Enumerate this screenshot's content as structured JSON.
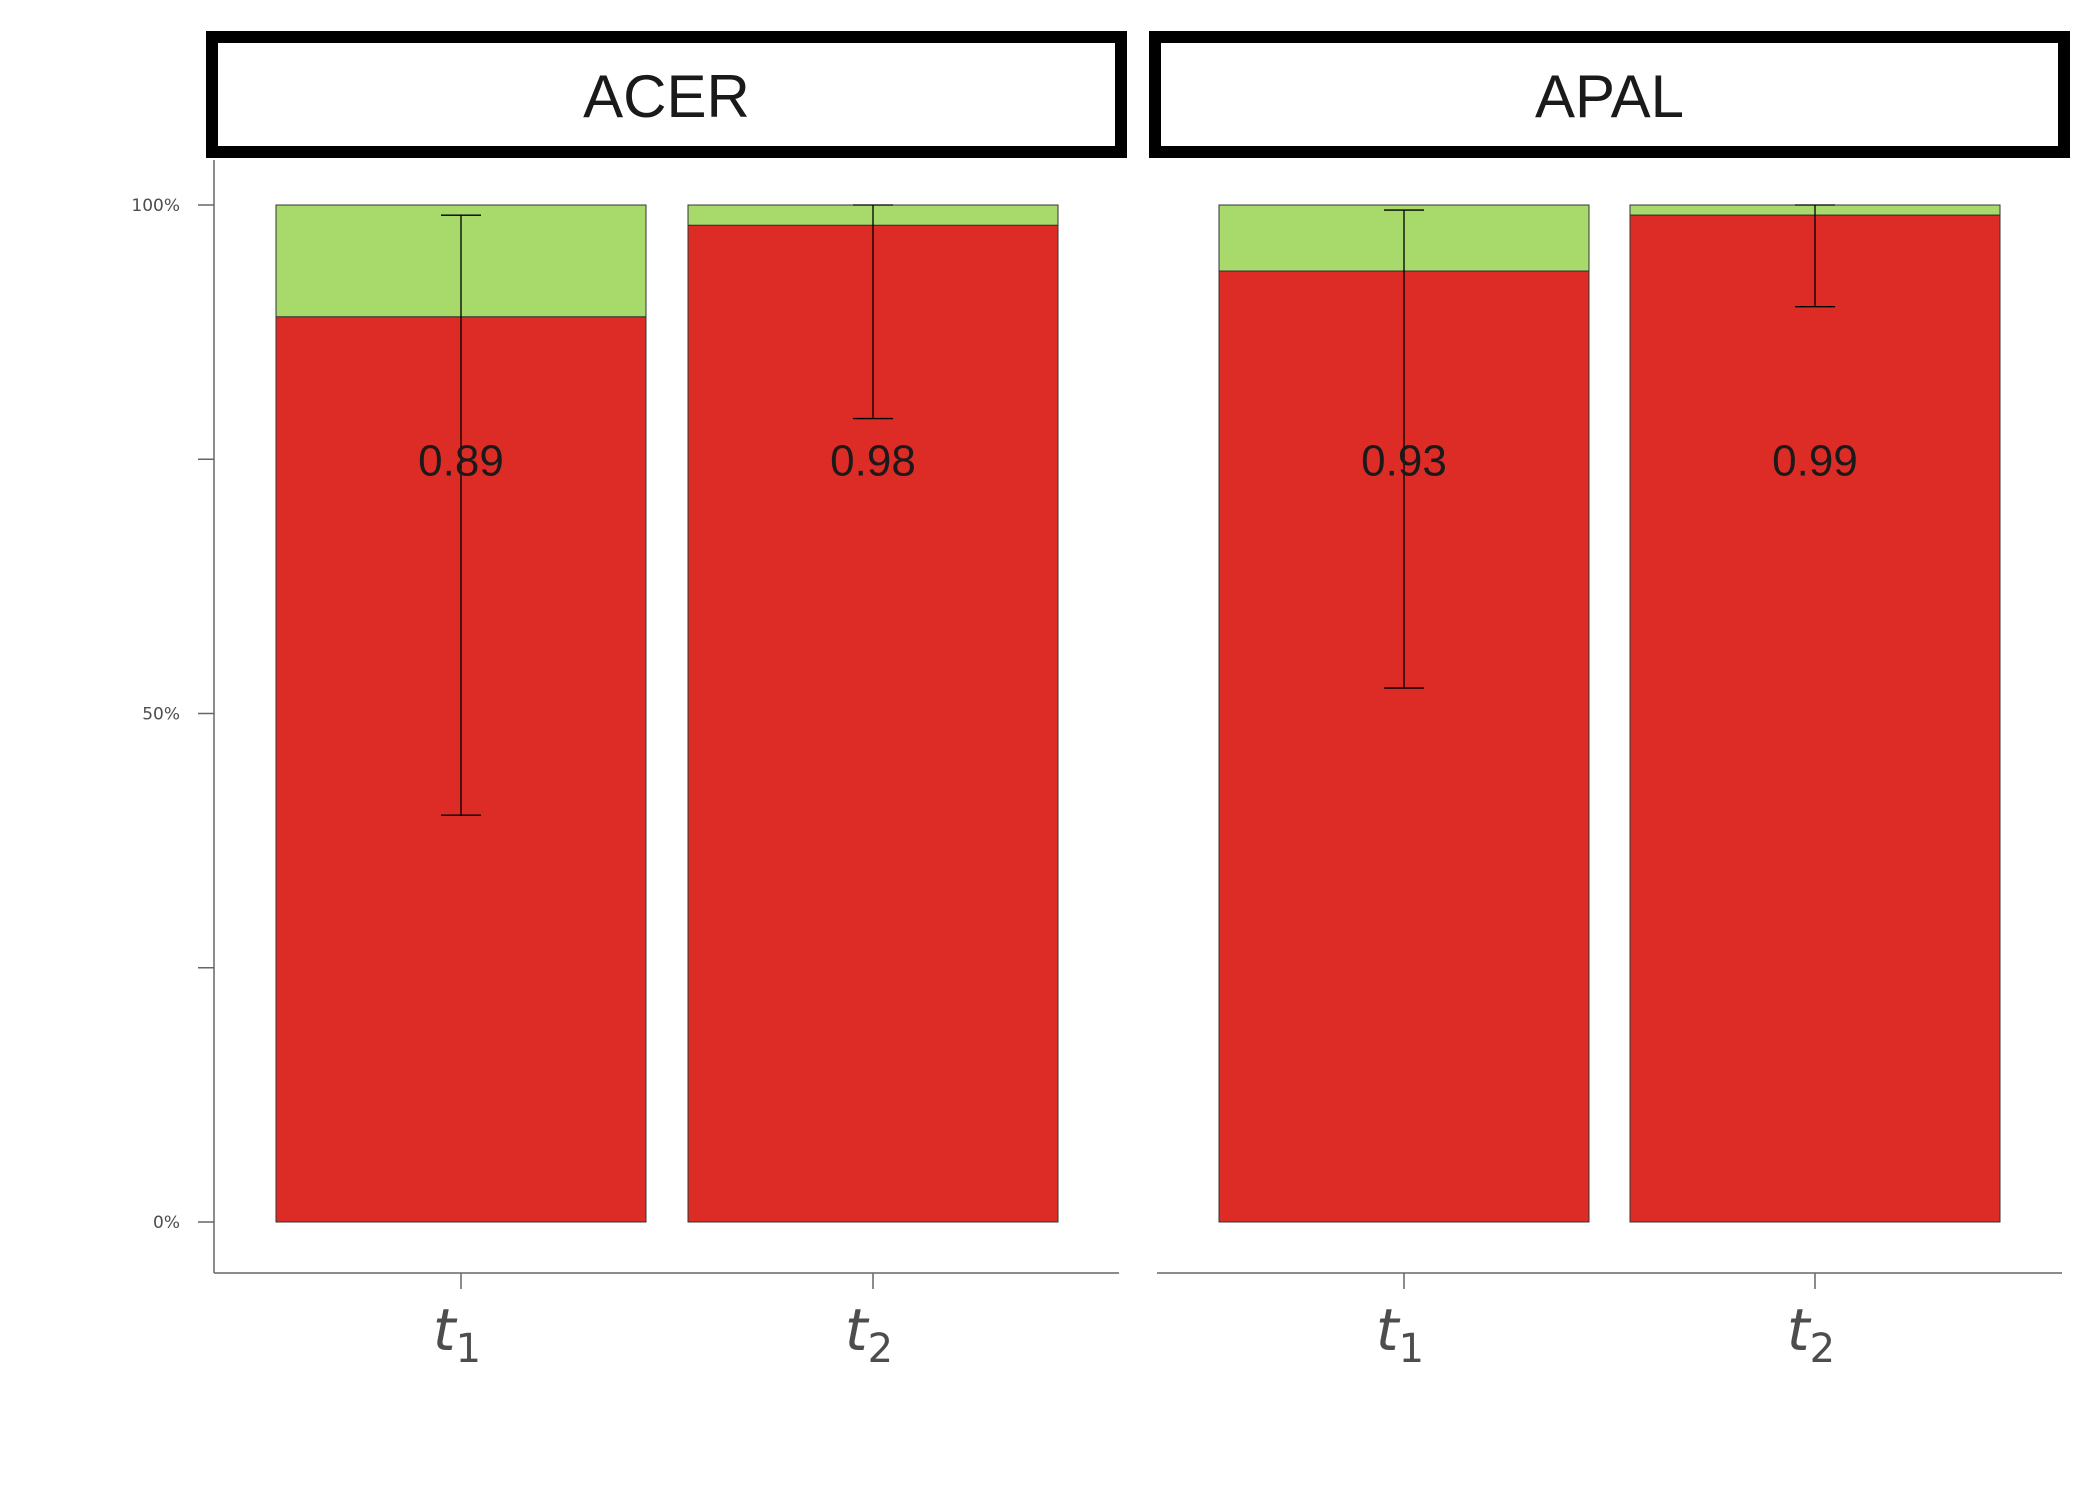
{
  "chart_data": {
    "type": "bar",
    "stacked": true,
    "facets": [
      "ACER",
      "APAL"
    ],
    "categories": [
      {
        "base": "t",
        "sub": "1"
      },
      {
        "base": "t",
        "sub": "2"
      }
    ],
    "ylim": [
      0,
      1
    ],
    "yticks": [
      {
        "value": 0,
        "label": "0%"
      },
      {
        "value": 0.25,
        "label": ""
      },
      {
        "value": 0.5,
        "label": "50%"
      },
      {
        "value": 0.75,
        "label": ""
      },
      {
        "value": 1,
        "label": "100%"
      }
    ],
    "label_y": 0.75,
    "series_colors": {
      "lower": "#dd2c26",
      "upper": "#a8d96b"
    },
    "bars": [
      {
        "facet": "ACER",
        "category": 0,
        "value": 0.89,
        "label": "0.89",
        "err_low": 0.4,
        "err_high": 0.99
      },
      {
        "facet": "ACER",
        "category": 1,
        "value": 0.98,
        "label": "0.98",
        "err_low": 0.79,
        "err_high": 1.0
      },
      {
        "facet": "APAL",
        "category": 0,
        "value": 0.935,
        "label": "0.93",
        "err_low": 0.525,
        "err_high": 0.995
      },
      {
        "facet": "APAL",
        "category": 1,
        "value": 0.99,
        "label": "0.99",
        "err_low": 0.9,
        "err_high": 1.0
      }
    ]
  }
}
